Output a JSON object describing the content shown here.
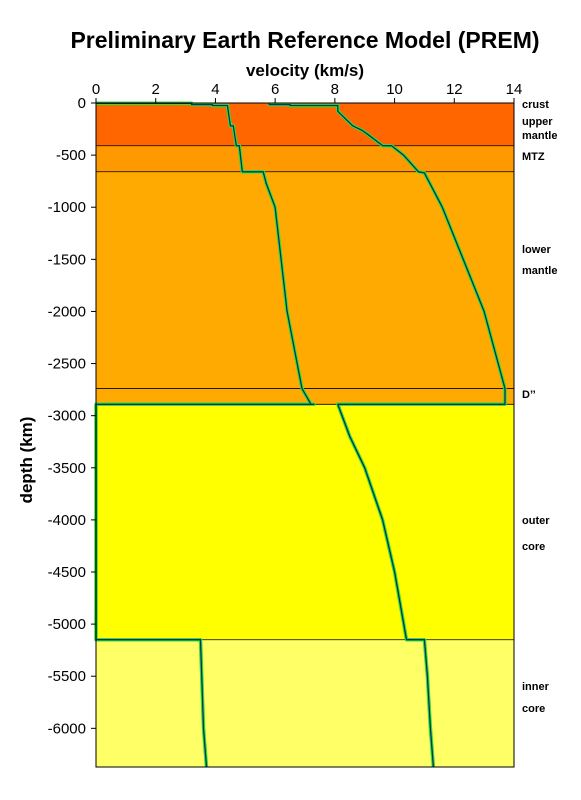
{
  "chart_data": {
    "type": "line",
    "title": "Preliminary Earth Reference Model (PREM)",
    "xlabel": "velocity (km/s)",
    "ylabel": "depth (km)",
    "xlim": [
      0,
      14
    ],
    "ylim": [
      -6371,
      0
    ],
    "x_ticks": [
      0,
      2,
      4,
      6,
      8,
      10,
      12,
      14
    ],
    "y_ticks": [
      0,
      -500,
      -1000,
      -1500,
      -2000,
      -2500,
      -3000,
      -3500,
      -4000,
      -4500,
      -5000,
      -5500,
      -6000
    ],
    "layers": [
      {
        "top": 0,
        "bottom": -24,
        "color": "#ff6600",
        "label_lines": [
          "crust"
        ]
      },
      {
        "top": -24,
        "bottom": -410,
        "color": "#ff6600",
        "label_lines": [
          "upper",
          "mantle"
        ]
      },
      {
        "top": -410,
        "bottom": -660,
        "color": "#ff9900",
        "label_lines": [
          "MTZ"
        ]
      },
      {
        "top": -660,
        "bottom": -2740,
        "color": "#ffaa00",
        "label_lines": [
          "lower",
          "mantle"
        ]
      },
      {
        "top": -2740,
        "bottom": -2891,
        "color": "#ffaa00",
        "label_lines": [
          "D’’"
        ]
      },
      {
        "top": -2891,
        "bottom": -5150,
        "color": "#ffff00",
        "label_lines": [
          "outer",
          "core"
        ]
      },
      {
        "top": -5150,
        "bottom": -6371,
        "color": "#ffff66",
        "label_lines": [
          "inner",
          "core"
        ]
      }
    ],
    "series": [
      {
        "color": "#003366",
        "x": [
          0.0,
          3.2,
          3.2,
          3.9,
          3.9,
          4.4,
          4.5,
          4.6,
          4.7,
          4.8,
          4.9,
          5.6,
          5.7,
          6.0,
          6.4,
          6.9,
          7.2,
          7.3,
          0.0,
          0.0,
          3.5,
          3.6,
          3.7
        ],
        "y": [
          -3,
          -3,
          -15,
          -15,
          -24,
          -24,
          -220,
          -220,
          -410,
          -410,
          -660,
          -660,
          -771,
          -1000,
          -2000,
          -2740,
          -2891,
          -2891,
          -2891,
          -5150,
          -5150,
          -6000,
          -6371
        ]
      },
      {
        "color": "#003366",
        "x": [
          5.8,
          5.8,
          6.5,
          6.5,
          8.1,
          8.1,
          8.6,
          8.9,
          9.1,
          9.6,
          9.9,
          10.3,
          10.8,
          11.0,
          11.6,
          12.3,
          13.0,
          13.7,
          13.7,
          8.1,
          8.5,
          9.0,
          9.6,
          10.0,
          10.4,
          11.0,
          11.1,
          11.2,
          11.3
        ],
        "y": [
          -3,
          -15,
          -15,
          -24,
          -24,
          -80,
          -220,
          -260,
          -300,
          -410,
          -410,
          -500,
          -660,
          -671,
          -1000,
          -1500,
          -2000,
          -2740,
          -2891,
          -2891,
          -3200,
          -3500,
          -4000,
          -4500,
          -5150,
          -5150,
          -5500,
          -6000,
          -6371
        ]
      }
    ],
    "grid": false,
    "legend": "none"
  }
}
